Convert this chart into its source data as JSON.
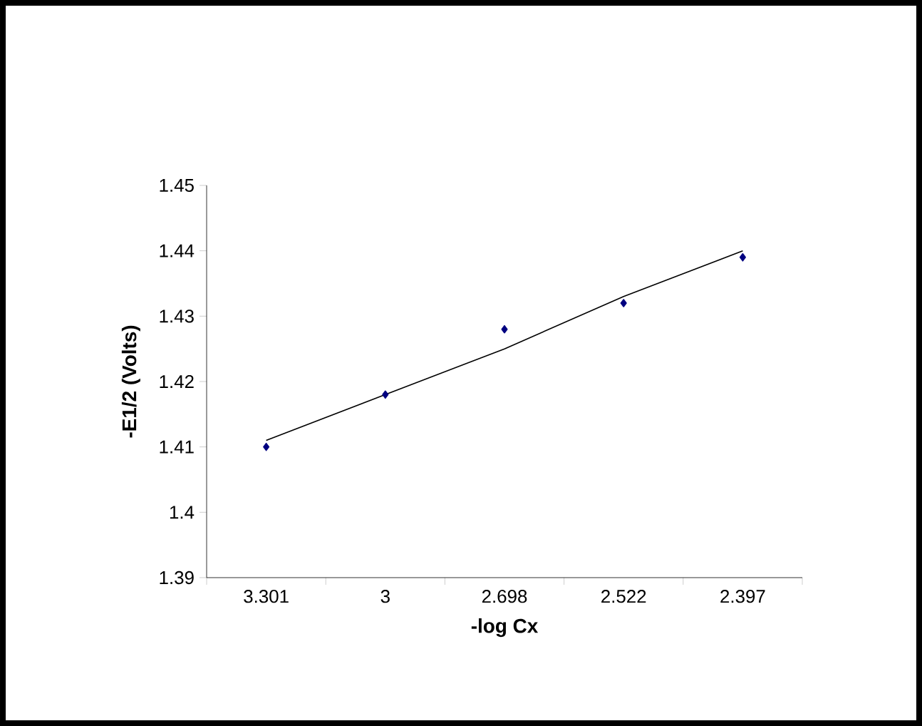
{
  "chart_data": {
    "type": "scatter",
    "xlabel": "-log Cx",
    "ylabel": "-E1/2 (Volts)",
    "categories": [
      "3.301",
      "3",
      "2.698",
      "2.522",
      "2.397"
    ],
    "series": [
      {
        "color": "#000080",
        "marker": "diamond",
        "values": [
          1.41,
          1.418,
          1.428,
          1.432,
          1.439
        ]
      },
      {
        "type": "line",
        "color": "#000000",
        "marker": "none",
        "values": [
          1.411,
          1.418,
          1.425,
          1.433,
          1.44
        ]
      }
    ],
    "ylim": [
      1.39,
      1.45
    ],
    "yticks": [
      1.39,
      1.4,
      1.41,
      1.42,
      1.43,
      1.44,
      1.45
    ]
  }
}
